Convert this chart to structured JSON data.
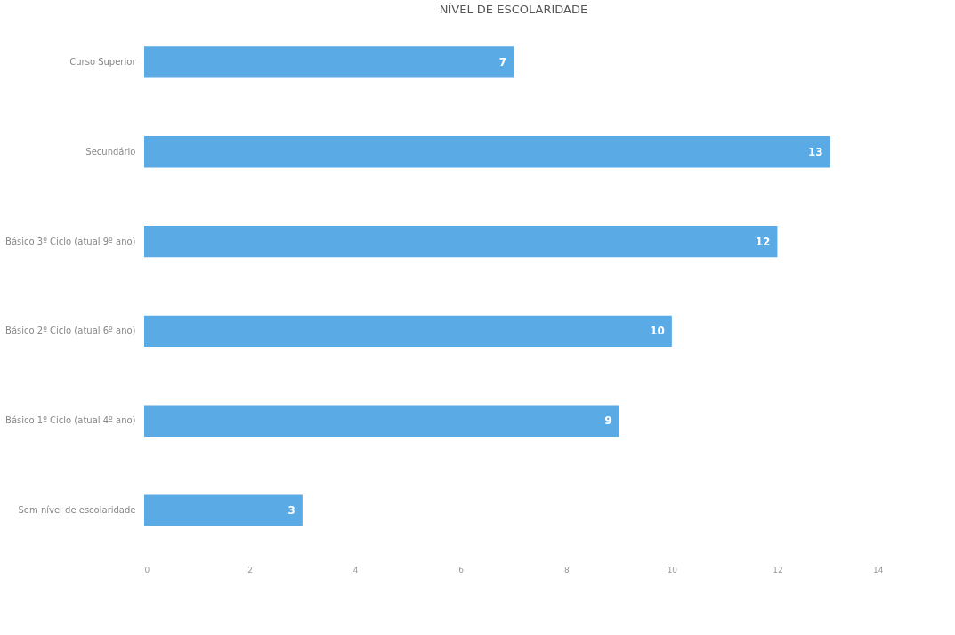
{
  "chart_data": {
    "type": "bar",
    "orientation": "horizontal",
    "title": "NÍVEL DE ESCOLARIDADE",
    "categories": [
      "Curso Superior",
      "Secundário",
      "Básico 3º Ciclo (atual 9º ano)",
      "Básico 2º Ciclo (atual 6º ano)",
      "Básico 1º Ciclo (atual 4º ano)",
      "Sem nível de escolaridade"
    ],
    "values": [
      7,
      13,
      12,
      10,
      9,
      3
    ],
    "color": "#5aaae6",
    "xlim": [
      0,
      14
    ],
    "xticks": [
      0,
      2,
      4,
      6,
      8,
      10,
      12,
      14
    ],
    "grid": false,
    "data_labels": true
  }
}
